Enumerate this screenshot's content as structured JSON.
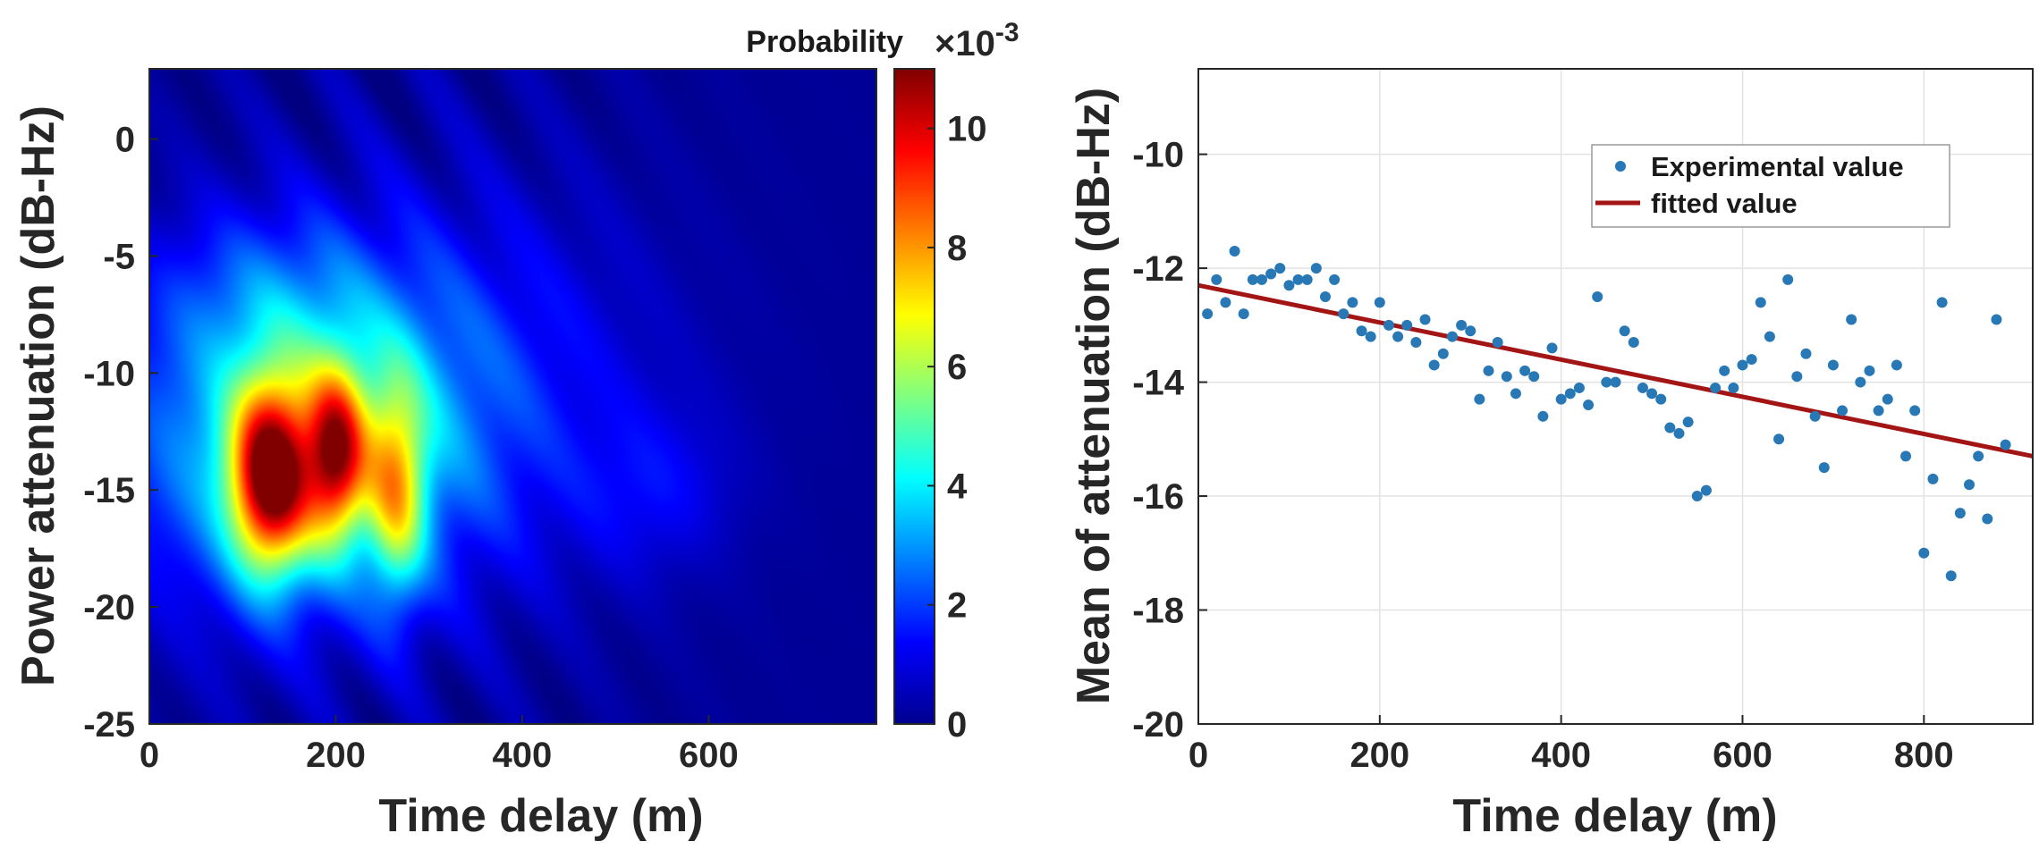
{
  "chart_data": [
    {
      "type": "heatmap",
      "title": "",
      "xlabel": "Time delay (m)",
      "ylabel": "Power attenuation (dB-Hz)",
      "xlim": [
        0,
        780
      ],
      "ylim": [
        -25,
        3
      ],
      "xticks": [
        0,
        200,
        400,
        600
      ],
      "yticks": [
        0,
        -5,
        -10,
        -15,
        -20,
        -25
      ],
      "colorbar": {
        "title": "Probability",
        "exponent_base": "×10",
        "exponent": "-3",
        "range": [
          0,
          11
        ],
        "ticks": [
          0,
          2,
          4,
          6,
          8,
          10
        ],
        "colormap": "jet"
      },
      "density_components": [
        {
          "x": 130,
          "y": -14.5,
          "sx": 30,
          "sy": 2.8,
          "amp": 8.5
        },
        {
          "x": 200,
          "y": -13.5,
          "sx": 22,
          "sy": 2.5,
          "amp": 6.5
        },
        {
          "x": 265,
          "y": -15.0,
          "sx": 22,
          "sy": 3.2,
          "amp": 4.5
        },
        {
          "x": 160,
          "y": -13.0,
          "sx": 130,
          "sy": 4.8,
          "amp": 3.8
        },
        {
          "x": 330,
          "y": -10.0,
          "sx": 150,
          "sy": 5.5,
          "amp": 1.2
        },
        {
          "x": 120,
          "y": -6.5,
          "sx": 90,
          "sy": 2.5,
          "amp": 1.0
        },
        {
          "x": 540,
          "y": -15.0,
          "sx": 60,
          "sy": 2.5,
          "amp": 0.9
        }
      ]
    },
    {
      "type": "scatter",
      "title": "",
      "xlabel": "Time delay (m)",
      "ylabel": "Mean of attenuation (dB-Hz)",
      "xlim": [
        0,
        920
      ],
      "ylim": [
        -20,
        -8.5
      ],
      "xticks": [
        0,
        200,
        400,
        600,
        800
      ],
      "yticks": [
        -10,
        -12,
        -14,
        -16,
        -18,
        -20
      ],
      "grid": true,
      "legend": {
        "placement": "top-right"
      },
      "series": [
        {
          "name": "Experimental value",
          "kind": "points",
          "color": "#2878b5",
          "x": [
            10,
            20,
            30,
            40,
            50,
            60,
            70,
            80,
            90,
            100,
            110,
            120,
            130,
            140,
            150,
            160,
            170,
            180,
            190,
            200,
            210,
            220,
            230,
            240,
            250,
            260,
            270,
            280,
            290,
            300,
            310,
            320,
            330,
            340,
            350,
            360,
            370,
            380,
            390,
            400,
            410,
            420,
            430,
            440,
            450,
            460,
            470,
            480,
            490,
            500,
            510,
            520,
            530,
            540,
            550,
            560,
            570,
            580,
            590,
            600,
            610,
            620,
            630,
            640,
            650,
            660,
            670,
            680,
            690,
            700,
            710,
            720,
            730,
            740,
            750,
            760,
            770,
            780,
            790,
            800,
            810,
            820,
            830,
            840,
            850,
            860,
            870,
            880,
            890
          ],
          "y": [
            -12.8,
            -12.2,
            -12.6,
            -11.7,
            -12.8,
            -12.2,
            -12.2,
            -12.1,
            -12.0,
            -12.3,
            -12.2,
            -12.2,
            -12.0,
            -12.5,
            -12.2,
            -12.8,
            -12.6,
            -13.1,
            -13.2,
            -12.6,
            -13.0,
            -13.2,
            -13.0,
            -13.3,
            -12.9,
            -13.7,
            -13.5,
            -13.2,
            -13.0,
            -13.1,
            -14.3,
            -13.8,
            -13.3,
            -13.9,
            -14.2,
            -13.8,
            -13.9,
            -14.6,
            -13.4,
            -14.3,
            -14.2,
            -14.1,
            -14.4,
            -12.5,
            -14.0,
            -14.0,
            -13.1,
            -13.3,
            -14.1,
            -14.2,
            -14.3,
            -14.8,
            -14.9,
            -14.7,
            -16.0,
            -15.9,
            -14.1,
            -13.8,
            -14.1,
            -13.7,
            -13.6,
            -12.6,
            -13.2,
            -15.0,
            -12.2,
            -13.9,
            -13.5,
            -14.6,
            -15.5,
            -13.7,
            -14.5,
            -12.9,
            -14.0,
            -13.8,
            -14.5,
            -14.3,
            -13.7,
            -15.3,
            -14.5,
            -17.0,
            -15.7,
            -12.6,
            -17.4,
            -16.3,
            -15.8,
            -15.3,
            -16.4,
            -12.9,
            -15.1
          ]
        },
        {
          "name": "fitted value",
          "kind": "line",
          "color": "#a31515",
          "x": [
            0,
            920
          ],
          "y": [
            -12.3,
            -15.3
          ]
        }
      ]
    }
  ]
}
